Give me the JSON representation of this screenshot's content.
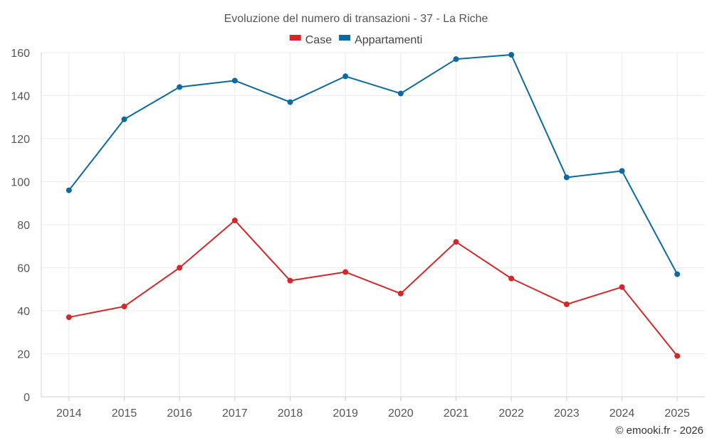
{
  "chart_data": {
    "type": "line",
    "title": "Evoluzione del numero di transazioni - 37 - La Riche",
    "categories": [
      "2014",
      "2015",
      "2016",
      "2017",
      "2018",
      "2019",
      "2020",
      "2021",
      "2022",
      "2023",
      "2024",
      "2025"
    ],
    "series": [
      {
        "name": "Case",
        "color": "#d62728",
        "values": [
          37,
          42,
          60,
          82,
          54,
          58,
          48,
          72,
          55,
          43,
          51,
          19
        ]
      },
      {
        "name": "Appartamenti",
        "color": "#0a6aa1",
        "values": [
          96,
          129,
          144,
          147,
          137,
          149,
          141,
          157,
          159,
          102,
          105,
          57
        ]
      }
    ],
    "ylim": [
      0,
      160
    ],
    "yticks": [
      "0",
      "20",
      "40",
      "60",
      "80",
      "100",
      "120",
      "140",
      "160"
    ],
    "grid": true,
    "legend_position": "top-center",
    "credit": "© emooki.fr - 2026"
  }
}
